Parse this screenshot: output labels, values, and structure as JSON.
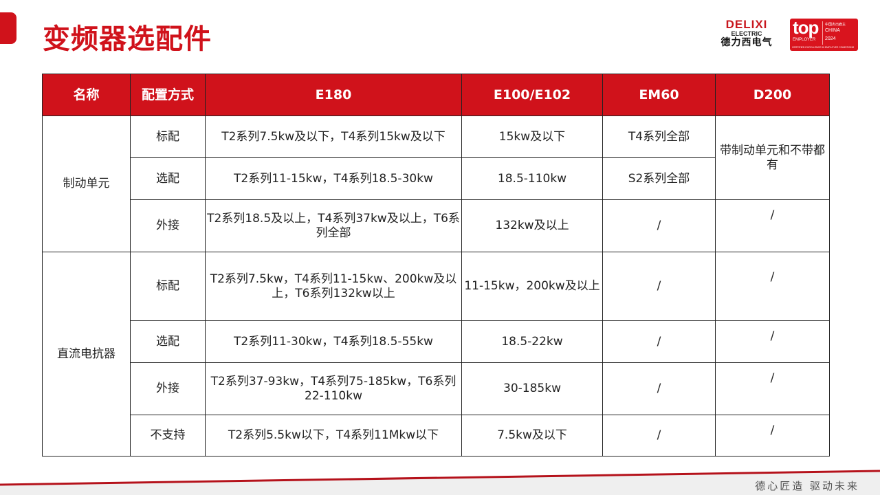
{
  "title": "变频器选配件",
  "logo": {
    "brand": "DELIXI",
    "sub": "ELECTRIC",
    "cn": "德力西电气"
  },
  "badge": {
    "top": "top",
    "employer": "EMPLOYER",
    "line1": "中国杰出雇主",
    "line2": "CHINA",
    "year": "2024",
    "cert": "CERTIFIED EXCELLENCE IN EMPLOYEE CONDITIONS"
  },
  "table": {
    "headers": [
      "名称",
      "配置方式",
      "E180",
      "E100/E102",
      "EM60",
      "D200"
    ],
    "groups": [
      {
        "name": "制动单元",
        "rows": [
          [
            "标配",
            "T2系列7.5kw及以下，T4系列15kw及以下",
            "15kw及以下",
            "T4系列全部"
          ],
          [
            "选配",
            "T2系列11-15kw，T4系列18.5-30kw",
            "18.5-110kw",
            "S2系列全部"
          ],
          [
            "外接",
            "T2系列18.5及以上，T4系列37kw及以上，T6系列全部",
            "132kw及以上",
            "/",
            "/"
          ]
        ],
        "d200_merged": "带制动单元和不带都有"
      },
      {
        "name": "直流电抗器",
        "rows": [
          [
            "标配",
            "T2系列7.5kw，T4系列11-15kw、200kw及以上，T6系列132kw以上",
            "11-15kw，200kw及以上",
            "/",
            "/"
          ],
          [
            "选配",
            "T2系列11-30kw，T4系列18.5-55kw",
            "18.5-22kw",
            "/",
            "/"
          ],
          [
            "外接",
            "T2系列37-93kw，T4系列75-185kw，T6系列22-110kw",
            "30-185kw",
            "/",
            "/"
          ],
          [
            "不支持",
            "T2系列5.5kw以下，T4系列11Mkw以下",
            "7.5kw及以下",
            "/",
            "/"
          ]
        ]
      }
    ]
  },
  "slogan": "德心匠造  驱动未来",
  "colors": {
    "accent": "#d0121b"
  }
}
